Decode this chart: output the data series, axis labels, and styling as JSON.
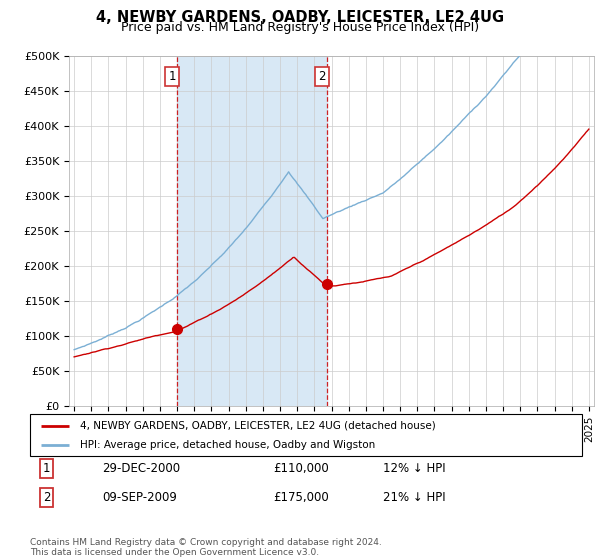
{
  "title": "4, NEWBY GARDENS, OADBY, LEICESTER, LE2 4UG",
  "subtitle": "Price paid vs. HM Land Registry's House Price Index (HPI)",
  "hpi_color": "#7BAFD4",
  "price_color": "#CC0000",
  "bg_color": "#FFFFFF",
  "grid_color": "#CCCCCC",
  "vline_color": "#CC0000",
  "vspan_color": "#D8E8F5",
  "legend_label_price": "4, NEWBY GARDENS, OADBY, LEICESTER, LE2 4UG (detached house)",
  "legend_label_hpi": "HPI: Average price, detached house, Oadby and Wigston",
  "vline1_x": 2001.0,
  "vline2_x": 2009.75,
  "marker1_price": 110000,
  "marker2_price": 175000,
  "table_row1": [
    "1",
    "29-DEC-2000",
    "£110,000",
    "12% ↓ HPI"
  ],
  "table_row2": [
    "2",
    "09-SEP-2009",
    "£175,000",
    "21% ↓ HPI"
  ],
  "footer": "Contains HM Land Registry data © Crown copyright and database right 2024.\nThis data is licensed under the Open Government Licence v3.0.",
  "ylim": [
    0,
    500000
  ],
  "yticks": [
    0,
    50000,
    100000,
    150000,
    200000,
    250000,
    300000,
    350000,
    400000,
    450000,
    500000
  ],
  "xlim_start": 1994.7,
  "xlim_end": 2025.3
}
